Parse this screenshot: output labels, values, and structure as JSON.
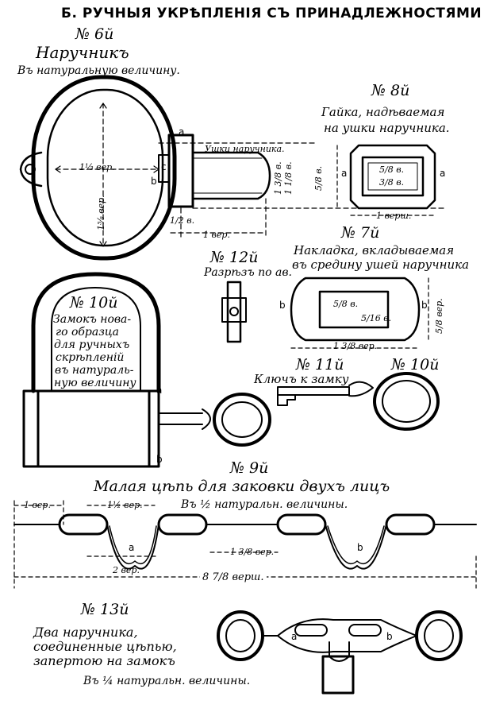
{
  "header": {
    "title": "Б. РУЧНЫЯ УКРѢПЛЕНІЯ СЪ ПРИНАДЛЕЖНОСТЯМИ"
  },
  "fig6": {
    "number": "№ 6й",
    "title": "Наручникъ",
    "scale": "Въ натуральную величину.",
    "dim_width": "1⅓ вер.",
    "dim_height": "1⅝ вер.",
    "ears_label": "Ушки наручника.",
    "dim_ear_height": "1 3/8 в.",
    "dim_ear_width": "1 1/8 в.",
    "dim_gap": "1/2 в.",
    "dim_length": "1 вер.",
    "letter_a": "a",
    "letter_b": "b",
    "letter_c": "c"
  },
  "fig8": {
    "number": "№ 8й",
    "title_line1": "Гайка, надѣваемая",
    "title_line2": "на ушки наручника.",
    "dim_height": "5/8 в.",
    "dim_inner_w": "5/8 в.",
    "dim_inner_h": "3/8 в.",
    "dim_width": "1 верш.",
    "letter_a": "a"
  },
  "fig7": {
    "number": "№ 7й",
    "title_line1": "Накладка, вкладываемая",
    "title_line2": "въ средину ушей наручника",
    "dim_inner_w": "5/8 в.",
    "dim_inner_h": "5/16 в.",
    "dim_height": "5/8 вер.",
    "dim_width": "1 3/8 вер.",
    "letter_b": "b"
  },
  "fig12": {
    "number": "№ 12й",
    "caption": "Разрѣзъ по ав."
  },
  "fig10": {
    "number": "№ 10й",
    "caption": [
      "Замокъ нова-",
      "го образца",
      "для ручныхъ",
      "скрѣпленій",
      "въ натураль-",
      "ную величину"
    ],
    "letter_a": "a",
    "letter_b": "b"
  },
  "fig11": {
    "number": "№ 11й",
    "caption": "Ключъ к замку"
  },
  "fig10b": {
    "number": "№ 10й"
  },
  "fig9": {
    "number": "№ 9й",
    "title": "Малая цѣпь для заковки двухъ лицъ",
    "scale": "Въ ½ натуральн. величины.",
    "dim_1": "1 вер.",
    "dim_2": "1½ вер.",
    "dim_3": "2 вер.",
    "dim_4": "1 3/8 вер.",
    "dim_total": "8 7/8 верш.",
    "letter_a": "a",
    "letter_b": "b"
  },
  "fig13": {
    "number": "№ 13й",
    "caption": [
      "Два наручника,",
      "соединенные цѣпью,",
      "запертою на замокъ"
    ],
    "scale": "Въ ¼ натуральн. величины.",
    "letter_a": "a",
    "letter_b": "b"
  }
}
